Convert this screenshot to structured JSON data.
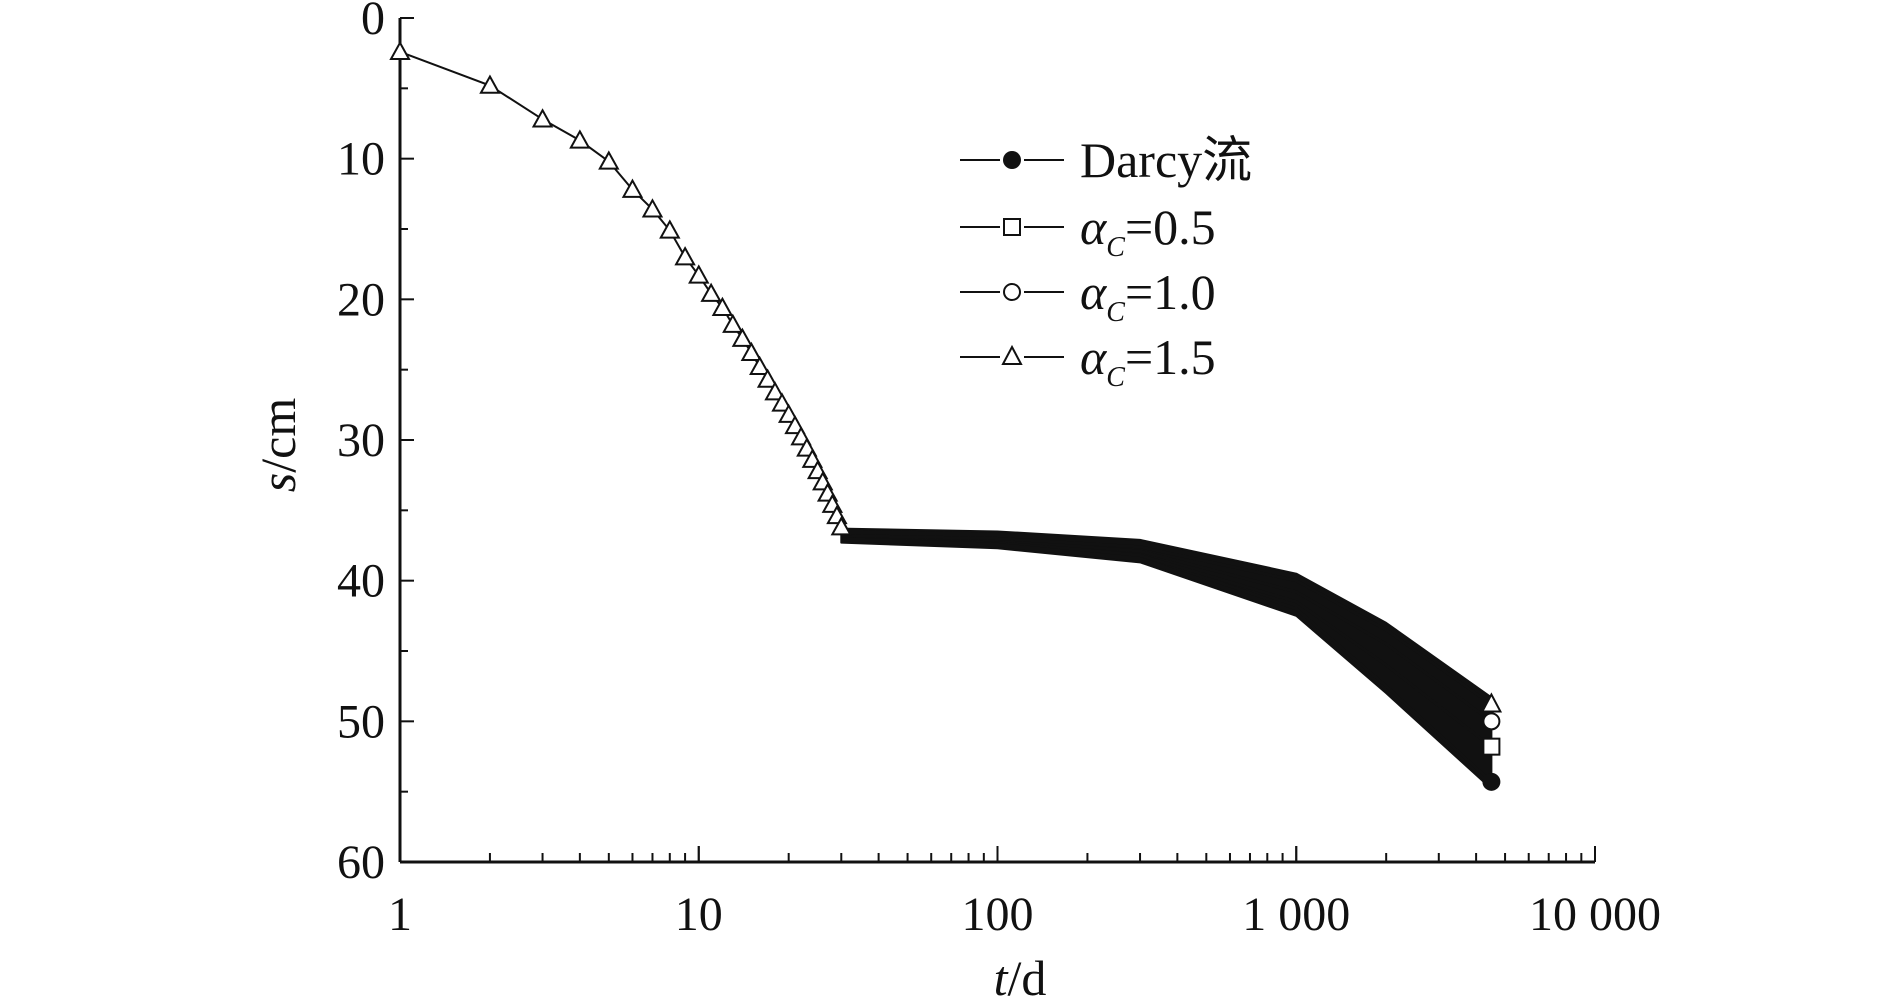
{
  "chart_data": {
    "type": "scatter",
    "x_scale": "log",
    "y_inverted": true,
    "xlim": [
      1,
      10000
    ],
    "ylim": [
      0,
      60
    ],
    "x_ticks": [
      1,
      10,
      100,
      1000,
      10000
    ],
    "x_tick_labels": [
      "1",
      "10",
      "100",
      "1 000",
      "10 000"
    ],
    "y_ticks": [
      0,
      10,
      20,
      30,
      40,
      50,
      60
    ],
    "y_tick_labels": [
      "0",
      "10",
      "20",
      "30",
      "40",
      "50",
      "60"
    ],
    "xlabel": {
      "var": "t",
      "unit": "/d"
    },
    "ylabel": {
      "var": "s",
      "unit": "/cm"
    },
    "legend_position": "top-right",
    "grid": false,
    "early_points": [
      [
        1,
        2.4
      ],
      [
        2,
        4.8
      ],
      [
        3,
        7.2
      ],
      [
        4,
        8.7
      ],
      [
        5,
        10.2
      ],
      [
        6,
        12.2
      ],
      [
        7,
        13.6
      ],
      [
        8,
        15.1
      ],
      [
        9,
        17.0
      ],
      [
        10,
        18.3
      ],
      [
        11,
        19.6
      ],
      [
        12,
        20.6
      ],
      [
        13,
        21.8
      ],
      [
        14,
        22.8
      ],
      [
        15,
        23.8
      ],
      [
        16,
        24.8
      ],
      [
        17,
        25.7
      ],
      [
        18,
        26.6
      ],
      [
        19,
        27.4
      ],
      [
        20,
        28.2
      ],
      [
        21,
        29.0
      ],
      [
        22,
        29.8
      ],
      [
        23,
        30.6
      ],
      [
        24,
        31.4
      ],
      [
        25,
        32.2
      ],
      [
        26,
        33.0
      ],
      [
        27,
        33.8
      ],
      [
        28,
        34.6
      ],
      [
        29,
        35.4
      ],
      [
        30,
        36.2
      ]
    ],
    "series": [
      {
        "name": "Darcy流",
        "marker": "filled-circle",
        "late_points": [
          [
            30,
            36.8
          ],
          [
            100,
            37.2
          ],
          [
            300,
            38.2
          ],
          [
            1000,
            42.0
          ],
          [
            2000,
            47.5
          ],
          [
            4500,
            54.3
          ]
        ]
      },
      {
        "name_symbol": "α",
        "name_sub": "C",
        "name_rest": "=0.5",
        "marker": "open-square",
        "late_points": [
          [
            30,
            36.8
          ],
          [
            100,
            37.2
          ],
          [
            300,
            38.2
          ],
          [
            1000,
            41.5
          ],
          [
            2000,
            46.0
          ],
          [
            4500,
            51.8
          ]
        ]
      },
      {
        "name_symbol": "α",
        "name_sub": "C",
        "name_rest": "=1.0",
        "marker": "open-circle",
        "late_points": [
          [
            30,
            36.8
          ],
          [
            100,
            37.1
          ],
          [
            300,
            37.9
          ],
          [
            1000,
            40.8
          ],
          [
            2000,
            44.5
          ],
          [
            4500,
            50.0
          ]
        ]
      },
      {
        "name_symbol": "α",
        "name_sub": "C",
        "name_rest": "=1.5",
        "marker": "open-triangle",
        "late_points": [
          [
            30,
            36.8
          ],
          [
            100,
            37.0
          ],
          [
            300,
            37.6
          ],
          [
            1000,
            40.0
          ],
          [
            2000,
            43.5
          ],
          [
            4500,
            48.8
          ]
        ]
      }
    ]
  }
}
